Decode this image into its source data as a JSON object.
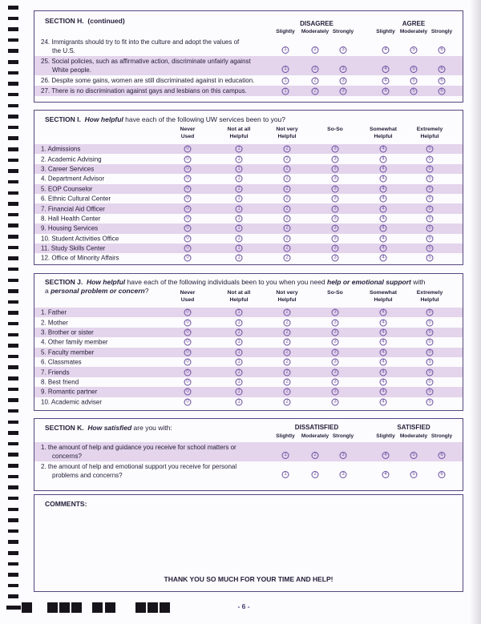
{
  "colors": {
    "band": "#e4d4ec",
    "border": "#56487f",
    "bubble": "#6a4f9e",
    "ink": "#26203a"
  },
  "sections": {
    "h": {
      "label": "SECTION H.",
      "suffix": "(continued)",
      "group_headers": [
        "DISAGREE",
        "AGREE"
      ],
      "sub_headers": [
        "Slightly",
        "Moderately",
        "Strongly",
        "Slightly",
        "Moderately",
        "Strongly"
      ],
      "scale": [
        "1",
        "2",
        "3",
        "4",
        "5",
        "6"
      ],
      "items": [
        {
          "lines": [
            "24. Immigrants should try to fit into the culture and adopt the values of",
            "the U.S."
          ],
          "band": false
        },
        {
          "lines": [
            "25. Social policies, such as affirmative action, discriminate unfairly against",
            "White people."
          ],
          "band": true
        },
        {
          "lines": [
            "26. Despite some gains, women are still discriminated against in education."
          ],
          "band": false
        },
        {
          "lines": [
            "27. There is no discrimination against gays and lesbians on this campus."
          ],
          "band": true
        }
      ]
    },
    "i": {
      "label": "SECTION I.",
      "title_segments": [
        {
          "t": "How helpful",
          "em": true
        },
        {
          "t": " have each of the following UW services been to you?",
          "em": false
        }
      ],
      "col_headers": [
        [
          "Never",
          "Used"
        ],
        [
          "Not at all",
          "Helpful"
        ],
        [
          "Not very",
          "Helpful"
        ],
        [
          "So-So"
        ],
        [
          "Somewhat",
          "Helpful"
        ],
        [
          "Extremely",
          "Helpful"
        ]
      ],
      "scale": [
        "0",
        "1",
        "2",
        "3",
        "4",
        "5"
      ],
      "items": [
        {
          "text": "1. Admissions",
          "band": true
        },
        {
          "text": "2. Academic Advising",
          "band": false
        },
        {
          "text": "3. Career Services",
          "band": true
        },
        {
          "text": "4. Department Advisor",
          "band": false
        },
        {
          "text": "5. EOP Counselor",
          "band": true
        },
        {
          "text": "6. Ethnic Cultural Center",
          "band": false
        },
        {
          "text": "7. Financial Aid Officer",
          "band": true
        },
        {
          "text": "8. Hall Health Center",
          "band": false
        },
        {
          "text": "9. Housing Services",
          "band": true
        },
        {
          "text": "10. Student Activities Office",
          "band": false
        },
        {
          "text": "11. Study Skills Center",
          "band": true
        },
        {
          "text": "12. Office of Minority Affairs",
          "band": false
        }
      ]
    },
    "j": {
      "label": "SECTION J.",
      "title_segments": [
        {
          "t": "How helpful",
          "em": true
        },
        {
          "t": " have each of the following individuals been to you when you need ",
          "em": false
        },
        {
          "t": "help or emotional support",
          "em": true
        },
        {
          "t": " with",
          "em": false
        }
      ],
      "title_segments_line2": [
        {
          "t": "a ",
          "em": false
        },
        {
          "t": "personal problem or concern",
          "em": true
        },
        {
          "t": "?",
          "em": false
        }
      ],
      "col_headers": [
        [
          "Never",
          "Used"
        ],
        [
          "Not at all",
          "Helpful"
        ],
        [
          "Not very",
          "Helpful"
        ],
        [
          "So-So"
        ],
        [
          "Somewhat",
          "Helpful"
        ],
        [
          "Extremely",
          "Helpful"
        ]
      ],
      "scale": [
        "0",
        "1",
        "2",
        "3",
        "4",
        "5"
      ],
      "items": [
        {
          "text": "1. Father",
          "band": true
        },
        {
          "text": "2. Mother",
          "band": false
        },
        {
          "text": "3. Brother or sister",
          "band": true
        },
        {
          "text": "4. Other family member",
          "band": false
        },
        {
          "text": "5. Faculty member",
          "band": true
        },
        {
          "text": "6. Classmates",
          "band": false
        },
        {
          "text": "7. Friends",
          "band": true
        },
        {
          "text": "8. Best friend",
          "band": false
        },
        {
          "text": "9. Romantic partner",
          "band": true
        },
        {
          "text": "10. Academic adviser",
          "band": false
        }
      ]
    },
    "k": {
      "label": "SECTION K.",
      "title_segments": [
        {
          "t": "How satisfied",
          "em": true
        },
        {
          "t": " are you with:",
          "em": false
        }
      ],
      "group_headers": [
        "DISSATISFIED",
        "SATISFIED"
      ],
      "sub_headers": [
        "Slightly",
        "Moderately",
        "Strongly",
        "Slightly",
        "Moderately",
        "Strongly"
      ],
      "scale": [
        "1",
        "2",
        "3",
        "4",
        "5",
        "6"
      ],
      "items": [
        {
          "lines": [
            "1. the amount of help and guidance you receive for school matters or",
            "concerns?"
          ],
          "band": true
        },
        {
          "lines": [
            "2. the amount of help and emotional support you receive for personal",
            "problems and concerns?"
          ],
          "band": false
        }
      ]
    }
  },
  "comments": {
    "label": "COMMENTS:"
  },
  "footer": {
    "thank_you": "THANK YOU SO MUCH FOR YOUR TIME AND HELP!",
    "page_number": "- 6 -"
  }
}
